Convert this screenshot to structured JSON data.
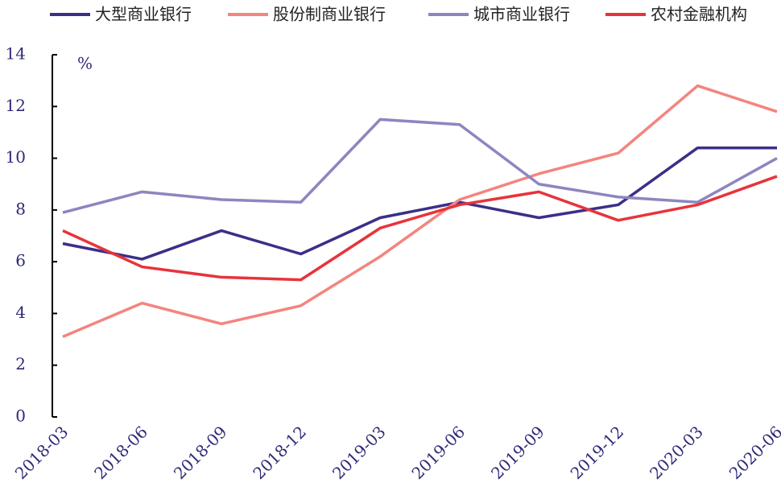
{
  "chart_data": {
    "type": "line",
    "y_unit": "%",
    "categories": [
      "2018-03",
      "2018-06",
      "2018-09",
      "2018-12",
      "2019-03",
      "2019-06",
      "2019-09",
      "2019-12",
      "2020-03",
      "2020-06"
    ],
    "series": [
      {
        "name": "大型商业银行",
        "color": "#3a3087",
        "values": [
          6.7,
          6.1,
          7.2,
          6.3,
          7.7,
          8.3,
          7.7,
          8.2,
          10.4,
          10.4
        ]
      },
      {
        "name": "股份制商业银行",
        "color": "#f4847f",
        "values": [
          3.1,
          4.4,
          3.6,
          4.3,
          6.2,
          8.4,
          9.4,
          10.2,
          12.8,
          11.8
        ]
      },
      {
        "name": "城市商业银行",
        "color": "#8c86c0",
        "values": [
          7.9,
          8.7,
          8.4,
          8.3,
          11.5,
          11.3,
          9.0,
          8.5,
          8.3,
          10.0
        ]
      },
      {
        "name": "农村金融机构",
        "color": "#e8333a",
        "values": [
          7.2,
          5.8,
          5.4,
          5.3,
          7.3,
          8.2,
          8.7,
          7.6,
          8.2,
          9.3
        ]
      }
    ],
    "ylim": [
      0,
      14
    ],
    "yticks": [
      0,
      2,
      4,
      6,
      8,
      10,
      12,
      14
    ],
    "grid": false,
    "legend": "top"
  }
}
